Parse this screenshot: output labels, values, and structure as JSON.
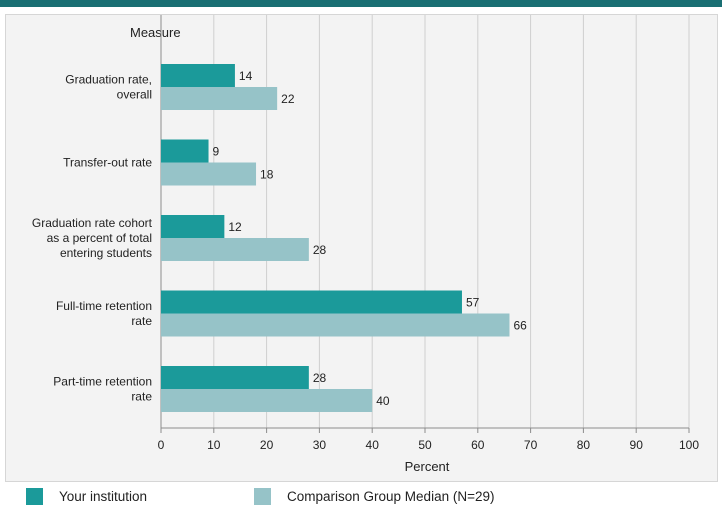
{
  "colors": {
    "series1": "#1b9a9a",
    "series2": "#96c3c8",
    "header": "#1a6f73",
    "panel": "#f3f3f3",
    "grid": "#cfcfcf"
  },
  "chart_data": {
    "type": "bar",
    "orientation": "horizontal",
    "title": "",
    "ylabel": "Measure",
    "xlabel": "Percent",
    "xlim": [
      0,
      100
    ],
    "xticks": [
      "0",
      "10",
      "20",
      "30",
      "40",
      "50",
      "60",
      "70",
      "80",
      "90",
      "100"
    ],
    "grid": "vertical",
    "legend_position": "bottom",
    "categories": [
      [
        "Graduation rate,",
        "overall"
      ],
      [
        "Transfer-out rate"
      ],
      [
        "Graduation rate cohort",
        "as a percent of total",
        "entering students"
      ],
      [
        "Full-time retention",
        "rate"
      ],
      [
        "Part-time retention",
        "rate"
      ]
    ],
    "series": [
      {
        "name": "Your institution",
        "values": [
          14,
          9,
          12,
          57,
          28
        ]
      },
      {
        "name": "Comparison Group Median (N=29)",
        "values": [
          22,
          18,
          28,
          66,
          40
        ]
      }
    ]
  }
}
